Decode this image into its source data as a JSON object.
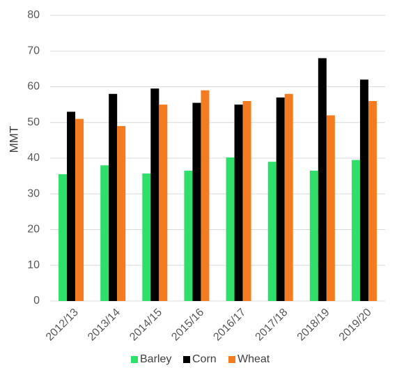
{
  "chart_data": {
    "type": "bar",
    "title": "",
    "xlabel": "",
    "ylabel": "MMT",
    "ylim": [
      0,
      80
    ],
    "yticks": [
      0,
      10,
      20,
      30,
      40,
      50,
      60,
      70,
      80
    ],
    "grid": true,
    "legend_position": "bottom",
    "categories": [
      "2012/13",
      "2013/14",
      "2014/15",
      "2015/16",
      "2016/17",
      "2017/18",
      "2018/19",
      "2019/20"
    ],
    "series": [
      {
        "name": "Barley",
        "color": "#2ee06a",
        "values": [
          35.5,
          38.0,
          35.7,
          36.5,
          40.2,
          39.0,
          36.5,
          39.5
        ]
      },
      {
        "name": "Corn",
        "color": "#000000",
        "values": [
          53.0,
          58.0,
          59.5,
          55.5,
          55.0,
          57.0,
          68.0,
          62.0
        ]
      },
      {
        "name": "Wheat",
        "color": "#f47b20",
        "values": [
          51.0,
          49.0,
          55.0,
          59.0,
          56.0,
          58.0,
          52.0,
          56.0
        ]
      }
    ]
  }
}
